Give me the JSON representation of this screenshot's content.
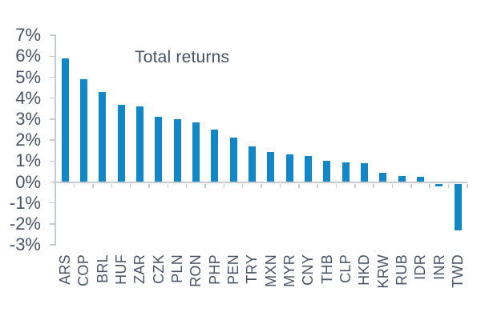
{
  "chart_data": {
    "type": "bar",
    "title": "Total returns",
    "categories": [
      "ARS",
      "COP",
      "BRL",
      "HUF",
      "ZAR",
      "CZK",
      "PLN",
      "RON",
      "PHP",
      "PEN",
      "TRY",
      "MXN",
      "MYR",
      "CNY",
      "THB",
      "CLP",
      "HKD",
      "KRW",
      "RUB",
      "IDR",
      "INR",
      "TWD"
    ],
    "values": [
      5.9,
      4.9,
      4.3,
      3.7,
      3.6,
      3.1,
      3.0,
      2.85,
      2.5,
      2.1,
      1.7,
      1.45,
      1.3,
      1.25,
      1.0,
      0.95,
      0.9,
      0.45,
      0.3,
      0.25,
      -0.2,
      -2.3
    ],
    "value_unit": "%",
    "xlabel": "",
    "ylabel": "",
    "ylim": [
      -3,
      7
    ],
    "y_tick_step": 1,
    "y_tick_labels": [
      "7%",
      "6%",
      "5%",
      "4%",
      "3%",
      "2%",
      "1%",
      "0%",
      "-1%",
      "-2%",
      "-3%"
    ],
    "grid": false,
    "legend": "none",
    "colors": {
      "bar": "#1287C7",
      "text": "#475366",
      "axis": "#C8CBD0"
    }
  }
}
